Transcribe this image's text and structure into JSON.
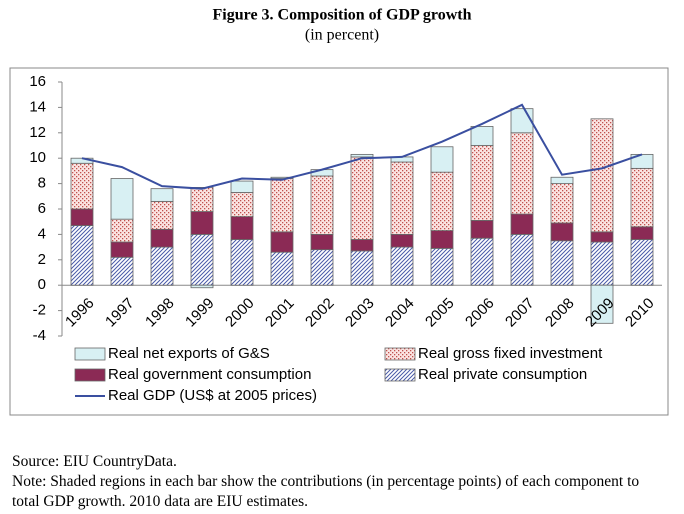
{
  "chart_data": {
    "type": "bar",
    "stacked": true,
    "title": "Figure 3. Composition of GDP growth",
    "subtitle": "(in percent)",
    "categories": [
      "1996",
      "1997",
      "1998",
      "1999",
      "2000",
      "2001",
      "2002",
      "2003",
      "2004",
      "2005",
      "2006",
      "2007",
      "2008",
      "2009",
      "2010"
    ],
    "series": [
      {
        "name": "Real net exports of G&S",
        "color": "#d8f0f3",
        "values": [
          0.4,
          3.2,
          1.0,
          -0.2,
          0.9,
          0.1,
          0.5,
          0.2,
          0.4,
          2.0,
          1.5,
          1.9,
          0.5,
          -3.0,
          1.1
        ]
      },
      {
        "name": "Real gross fixed investment",
        "color": "#c0504d",
        "pattern": "dots",
        "values": [
          3.6,
          1.8,
          2.2,
          1.9,
          1.9,
          4.2,
          4.6,
          6.5,
          5.7,
          4.6,
          5.9,
          6.4,
          3.1,
          8.9,
          4.6
        ]
      },
      {
        "name": "Real government consumption",
        "color": "#8b2a55",
        "values": [
          1.3,
          1.2,
          1.4,
          1.8,
          1.8,
          1.6,
          1.2,
          0.9,
          1.0,
          1.4,
          1.4,
          1.6,
          1.4,
          0.8,
          1.0
        ]
      },
      {
        "name": "Real private consumption",
        "color": "#4a5aa8",
        "pattern": "diagonal",
        "values": [
          4.7,
          2.2,
          3.0,
          4.0,
          3.6,
          2.6,
          2.8,
          2.7,
          3.0,
          2.9,
          3.7,
          4.0,
          3.5,
          3.4,
          3.6
        ]
      },
      {
        "name": "Real GDP (US$ at 2005 prices)",
        "type": "line",
        "color": "#3a4fa0",
        "values": [
          10.0,
          9.3,
          7.8,
          7.6,
          8.4,
          8.3,
          9.1,
          10.0,
          10.1,
          11.3,
          12.7,
          14.2,
          8.7,
          9.2,
          10.3
        ]
      }
    ],
    "ylim": [
      -4,
      16
    ],
    "yticks": [
      -4,
      -2,
      0,
      2,
      4,
      6,
      8,
      10,
      12,
      14,
      16
    ],
    "source": "Source: EIU CountryData.",
    "note": "Note: Shaded regions in each bar show the contributions (in percentage points) of each component to total GDP growth. 2010 data are EIU estimates."
  }
}
